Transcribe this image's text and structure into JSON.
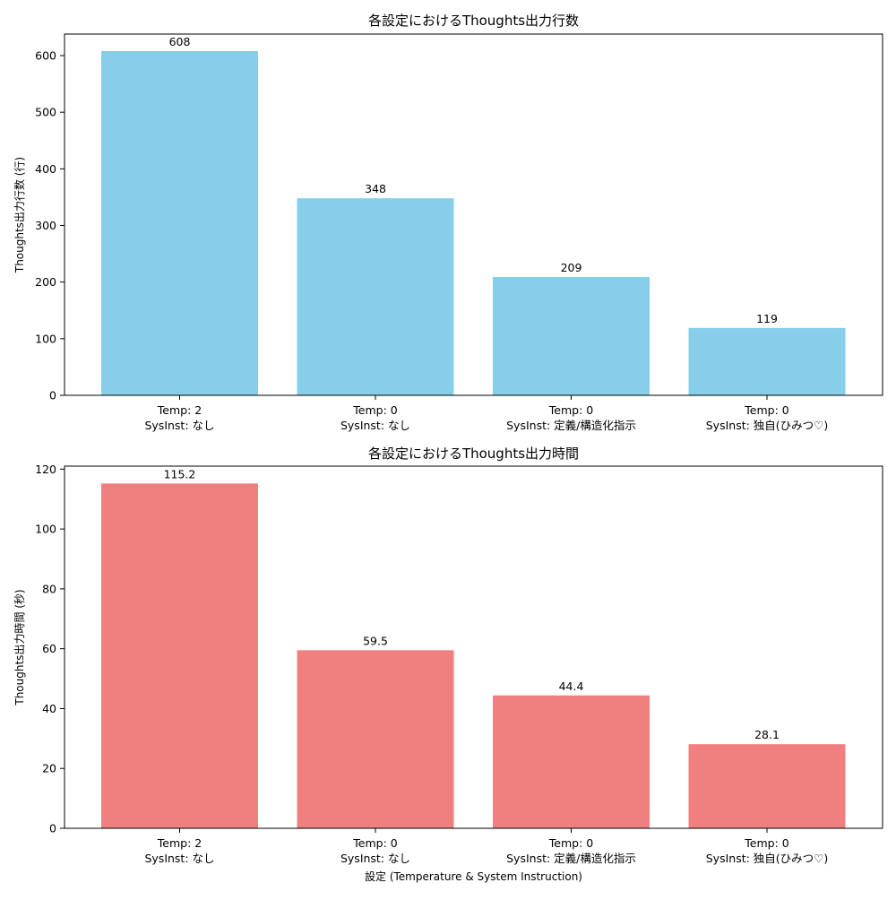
{
  "chart_data": [
    {
      "type": "bar",
      "title": "各設定におけるThoughts出力行数",
      "ylabel": "Thoughts出力行数 (行)",
      "xlabel": "",
      "categories": [
        [
          "Temp: 2",
          "SysInst: なし"
        ],
        [
          "Temp: 0",
          "SysInst: なし"
        ],
        [
          "Temp: 0",
          "SysInst: 定義/構造化指示"
        ],
        [
          "Temp: 0",
          "SysInst: 独自(ひみつ♡)"
        ]
      ],
      "values": [
        608,
        348,
        209,
        119
      ],
      "value_labels": [
        "608",
        "348",
        "209",
        "119"
      ],
      "ylim": [
        0,
        638
      ],
      "yticks": [
        0,
        100,
        200,
        300,
        400,
        500,
        600
      ],
      "bar_color": "#87ceeb",
      "grid": false
    },
    {
      "type": "bar",
      "title": "各設定におけるThoughts出力時間",
      "ylabel": "Thoughts出力時間 (秒)",
      "xlabel": "設定 (Temperature & System Instruction)",
      "categories": [
        [
          "Temp: 2",
          "SysInst: なし"
        ],
        [
          "Temp: 0",
          "SysInst: なし"
        ],
        [
          "Temp: 0",
          "SysInst: 定義/構造化指示"
        ],
        [
          "Temp: 0",
          "SysInst: 独自(ひみつ♡)"
        ]
      ],
      "values": [
        115.2,
        59.5,
        44.4,
        28.1
      ],
      "value_labels": [
        "115.2",
        "59.5",
        "44.4",
        "28.1"
      ],
      "ylim": [
        0,
        121
      ],
      "yticks": [
        0,
        20,
        40,
        60,
        80,
        100,
        120
      ],
      "bar_color": "#f08080",
      "grid": false
    }
  ]
}
